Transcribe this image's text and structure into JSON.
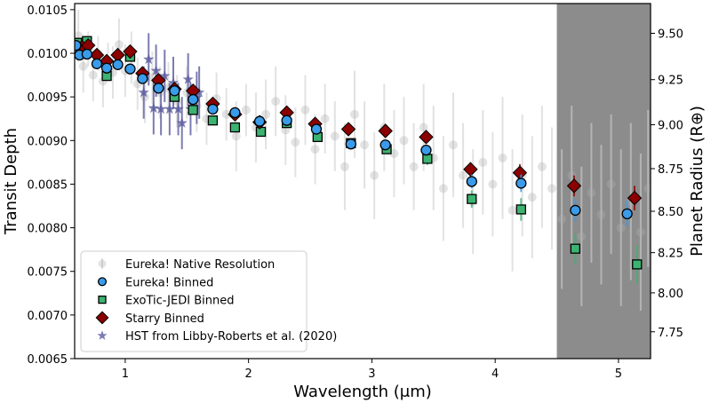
{
  "chart_data": {
    "type": "scatter",
    "xlabel": "Wavelength (μm)",
    "ylabel": "Transit Depth",
    "ylabel_right": "Planet Radius (R⊕)",
    "xlim": [
      0.59,
      5.26
    ],
    "ylim": [
      0.0065,
      0.01057
    ],
    "ylim_right": [
      7.573,
      9.657
    ],
    "right_axis_scale": "radius proportional to sqrt(transit depth)",
    "xticks": [
      "1",
      "2",
      "3",
      "4",
      "5"
    ],
    "yticks": [
      "0.0065",
      "0.0070",
      "0.0075",
      "0.0080",
      "0.0085",
      "0.0090",
      "0.0095",
      "0.0100",
      "0.0105"
    ],
    "yticks_right": [
      "7.75",
      "8.00",
      "8.25",
      "8.50",
      "8.75",
      "9.00",
      "9.25",
      "9.50"
    ],
    "grid": false,
    "legend_position": "bottom-left",
    "shaded_region": {
      "x_from": 4.5,
      "x_to": 5.26,
      "color": "#808080"
    },
    "series": [
      {
        "name": "Eureka! Native Resolution",
        "marker": "circle-faint",
        "color": "#b0b0b0",
        "points": [
          [
            0.62,
            0.0102,
            0.0003
          ],
          [
            0.66,
            0.00985,
            0.0003
          ],
          [
            0.7,
            0.01005,
            0.0002
          ],
          [
            0.74,
            0.00975,
            0.0003
          ],
          [
            0.78,
            0.01,
            0.0002
          ],
          [
            0.82,
            0.00968,
            0.0003
          ],
          [
            0.86,
            0.00992,
            0.0002
          ],
          [
            0.9,
            0.00978,
            0.0003
          ],
          [
            0.95,
            0.0101,
            0.0003
          ],
          [
            1.0,
            0.0098,
            0.0003
          ],
          [
            1.05,
            0.00995,
            0.0003
          ],
          [
            1.1,
            0.00965,
            0.0003
          ],
          [
            1.16,
            0.0095,
            0.0003
          ],
          [
            1.22,
            0.00972,
            0.0003
          ],
          [
            1.28,
            0.00955,
            0.0003
          ],
          [
            1.35,
            0.0096,
            0.0003
          ],
          [
            1.42,
            0.00945,
            0.0003
          ],
          [
            1.5,
            0.00955,
            0.0003
          ],
          [
            1.58,
            0.0094,
            0.0003
          ],
          [
            1.66,
            0.00925,
            0.0003
          ],
          [
            1.74,
            0.00948,
            0.0003
          ],
          [
            1.82,
            0.0093,
            0.0003
          ],
          [
            1.9,
            0.00905,
            0.0004
          ],
          [
            1.98,
            0.00935,
            0.0003
          ],
          [
            2.06,
            0.00915,
            0.0004
          ],
          [
            2.14,
            0.0093,
            0.0004
          ],
          [
            2.22,
            0.00945,
            0.0004
          ],
          [
            2.3,
            0.00912,
            0.0004
          ],
          [
            2.38,
            0.00898,
            0.0004
          ],
          [
            2.46,
            0.00935,
            0.0004
          ],
          [
            2.54,
            0.0089,
            0.0004
          ],
          [
            2.62,
            0.00925,
            0.0004
          ],
          [
            2.7,
            0.00905,
            0.0004
          ],
          [
            2.78,
            0.0087,
            0.0005
          ],
          [
            2.86,
            0.0093,
            0.0005
          ],
          [
            2.94,
            0.00895,
            0.0005
          ],
          [
            3.02,
            0.0086,
            0.0005
          ],
          [
            3.1,
            0.00915,
            0.0005
          ],
          [
            3.18,
            0.00885,
            0.0005
          ],
          [
            3.26,
            0.009,
            0.0005
          ],
          [
            3.34,
            0.0087,
            0.0005
          ],
          [
            3.42,
            0.00915,
            0.0005
          ],
          [
            3.5,
            0.0088,
            0.0006
          ],
          [
            3.58,
            0.00845,
            0.0006
          ],
          [
            3.66,
            0.00895,
            0.0006
          ],
          [
            3.74,
            0.0086,
            0.0006
          ],
          [
            3.82,
            0.0083,
            0.0006
          ],
          [
            3.9,
            0.00875,
            0.0006
          ],
          [
            3.98,
            0.0085,
            0.0006
          ],
          [
            4.06,
            0.0088,
            0.0007
          ],
          [
            4.14,
            0.0082,
            0.0007
          ],
          [
            4.22,
            0.0086,
            0.0007
          ],
          [
            4.3,
            0.00835,
            0.0007
          ],
          [
            4.38,
            0.0087,
            0.0007
          ],
          [
            4.46,
            0.00845,
            0.0007
          ],
          [
            4.54,
            0.0081,
            0.0008
          ],
          [
            4.62,
            0.0086,
            0.0008
          ],
          [
            4.7,
            0.0079,
            0.0008
          ],
          [
            4.78,
            0.0084,
            0.0008
          ],
          [
            4.86,
            0.00815,
            0.0008
          ],
          [
            4.94,
            0.0085,
            0.0008
          ],
          [
            5.02,
            0.008,
            0.0009
          ],
          [
            5.1,
            0.0083,
            0.0009
          ],
          [
            5.18,
            0.00795,
            0.0009
          ],
          [
            5.24,
            0.00845,
            0.0009
          ]
        ]
      },
      {
        "name": "Eureka! Binned",
        "marker": "circle",
        "color": "#3a9bea",
        "points": [
          [
            0.6,
            0.01009,
            3e-05
          ],
          [
            0.63,
            0.00998,
            3e-05
          ],
          [
            0.69,
            0.00999,
            3e-05
          ],
          [
            0.77,
            0.00988,
            3e-05
          ],
          [
            0.85,
            0.00983,
            3e-05
          ],
          [
            0.94,
            0.00987,
            3e-05
          ],
          [
            1.04,
            0.00982,
            3e-05
          ],
          [
            1.14,
            0.00971,
            3e-05
          ],
          [
            1.27,
            0.0096,
            3e-05
          ],
          [
            1.4,
            0.00957,
            3e-05
          ],
          [
            1.55,
            0.00947,
            3e-05
          ],
          [
            1.71,
            0.00936,
            3e-05
          ],
          [
            1.89,
            0.00932,
            3e-05
          ],
          [
            2.09,
            0.00922,
            3e-05
          ],
          [
            2.31,
            0.00923,
            3e-05
          ],
          [
            2.55,
            0.00913,
            4e-05
          ],
          [
            2.83,
            0.00896,
            4e-05
          ],
          [
            3.11,
            0.00895,
            5e-05
          ],
          [
            3.44,
            0.00889,
            6e-05
          ],
          [
            3.81,
            0.00853,
            8e-05
          ],
          [
            4.21,
            0.00851,
            0.0001
          ],
          [
            4.65,
            0.0082,
            0.00013
          ],
          [
            5.07,
            0.00816,
            0.00015
          ]
        ]
      },
      {
        "name": "ExoTic-JEDI Binned",
        "marker": "square",
        "color": "#3cb371",
        "points": [
          [
            0.61,
            0.01012,
            3e-05
          ],
          [
            0.69,
            0.01014,
            3e-05
          ],
          [
            0.85,
            0.00974,
            3e-05
          ],
          [
            1.04,
            0.00996,
            3e-05
          ],
          [
            1.4,
            0.0095,
            3e-05
          ],
          [
            1.55,
            0.00935,
            3e-05
          ],
          [
            1.71,
            0.00923,
            3e-05
          ],
          [
            1.89,
            0.00915,
            3e-05
          ],
          [
            2.1,
            0.0091,
            3e-05
          ],
          [
            2.31,
            0.0092,
            3e-05
          ],
          [
            2.56,
            0.00904,
            4e-05
          ],
          [
            2.83,
            0.00897,
            4e-05
          ],
          [
            3.12,
            0.0089,
            5e-05
          ],
          [
            3.45,
            0.00879,
            7e-05
          ],
          [
            3.81,
            0.00833,
            0.0001
          ],
          [
            4.21,
            0.00821,
            0.00013
          ],
          [
            4.65,
            0.00776,
            0.00017
          ],
          [
            5.15,
            0.00758,
            0.00022
          ]
        ]
      },
      {
        "name": "Starry Binned",
        "marker": "diamond",
        "color": "#8b0000",
        "points": [
          [
            0.65,
            0.01007,
            3e-05
          ],
          [
            0.7,
            0.01009,
            3e-05
          ],
          [
            0.77,
            0.00998,
            3e-05
          ],
          [
            0.85,
            0.00991,
            3e-05
          ],
          [
            0.94,
            0.00998,
            3e-05
          ],
          [
            1.04,
            0.01002,
            3e-05
          ],
          [
            1.14,
            0.00977,
            3e-05
          ],
          [
            1.27,
            0.00969,
            3e-05
          ],
          [
            1.4,
            0.00959,
            3e-05
          ],
          [
            1.55,
            0.00957,
            3e-05
          ],
          [
            1.71,
            0.00942,
            3e-05
          ],
          [
            1.89,
            0.0093,
            3e-05
          ],
          [
            2.09,
            0.00921,
            3e-05
          ],
          [
            2.31,
            0.00932,
            3e-05
          ],
          [
            2.54,
            0.00919,
            4e-05
          ],
          [
            2.81,
            0.00913,
            4e-05
          ],
          [
            3.11,
            0.00911,
            5e-05
          ],
          [
            3.44,
            0.00904,
            6e-05
          ],
          [
            3.8,
            0.00867,
            8e-05
          ],
          [
            4.2,
            0.00863,
            0.0001
          ],
          [
            4.64,
            0.00848,
            0.00012
          ],
          [
            5.13,
            0.00834,
            0.00014
          ]
        ]
      },
      {
        "name": "HST from Libby-Roberts et al. (2020)",
        "marker": "star",
        "color": "#5a5a9e",
        "points": [
          [
            1.15,
            0.00955,
            0.0003
          ],
          [
            1.19,
            0.00993,
            0.0003
          ],
          [
            1.23,
            0.00937,
            0.0003
          ],
          [
            1.25,
            0.0098,
            0.0003
          ],
          [
            1.29,
            0.00936,
            0.0003
          ],
          [
            1.32,
            0.00974,
            0.0003
          ],
          [
            1.36,
            0.00936,
            0.0003
          ],
          [
            1.39,
            0.00966,
            0.0003
          ],
          [
            1.43,
            0.00936,
            0.0003
          ],
          [
            1.46,
            0.0092,
            0.0003
          ],
          [
            1.51,
            0.0097,
            0.0003
          ],
          [
            1.53,
            0.00936,
            0.0003
          ],
          [
            1.58,
            0.00949,
            0.0003
          ],
          [
            1.6,
            0.00955,
            0.0003
          ]
        ]
      }
    ]
  }
}
